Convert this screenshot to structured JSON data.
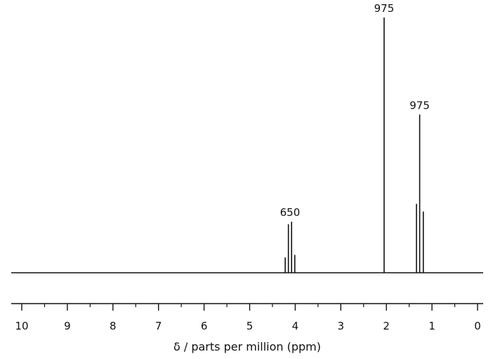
{
  "chart_data": {
    "type": "nmr-spectrum",
    "xlabel": "δ / parts per million (ppm)",
    "xlim": [
      10,
      0
    ],
    "major_ticks": [
      10,
      9,
      8,
      7,
      6,
      5,
      4,
      3,
      2,
      1,
      0
    ],
    "minor_ticks": [
      9.5,
      8.5,
      7.5,
      6.5,
      5.5,
      4.5,
      3.5,
      2.5,
      1.5,
      0.5
    ],
    "tick_labels": [
      "10",
      "9",
      "8",
      "7",
      "6",
      "5",
      "4",
      "3",
      "2",
      "1",
      "0"
    ],
    "peaks": [
      {
        "ppm": 4.22,
        "height": 0.06
      },
      {
        "ppm": 4.15,
        "height": 0.19
      },
      {
        "ppm": 4.08,
        "height": 0.2
      },
      {
        "ppm": 4.01,
        "height": 0.07
      },
      {
        "ppm": 2.05,
        "height": 1.0
      },
      {
        "ppm": 1.34,
        "height": 0.27
      },
      {
        "ppm": 1.27,
        "height": 0.62
      },
      {
        "ppm": 1.19,
        "height": 0.24
      }
    ],
    "annotations": [
      {
        "text": "975",
        "ppm": 2.05,
        "height": 1.0
      },
      {
        "text": "975",
        "ppm": 1.27,
        "height": 0.62
      },
      {
        "text": "650",
        "ppm": 4.115,
        "height": 0.2
      }
    ]
  }
}
